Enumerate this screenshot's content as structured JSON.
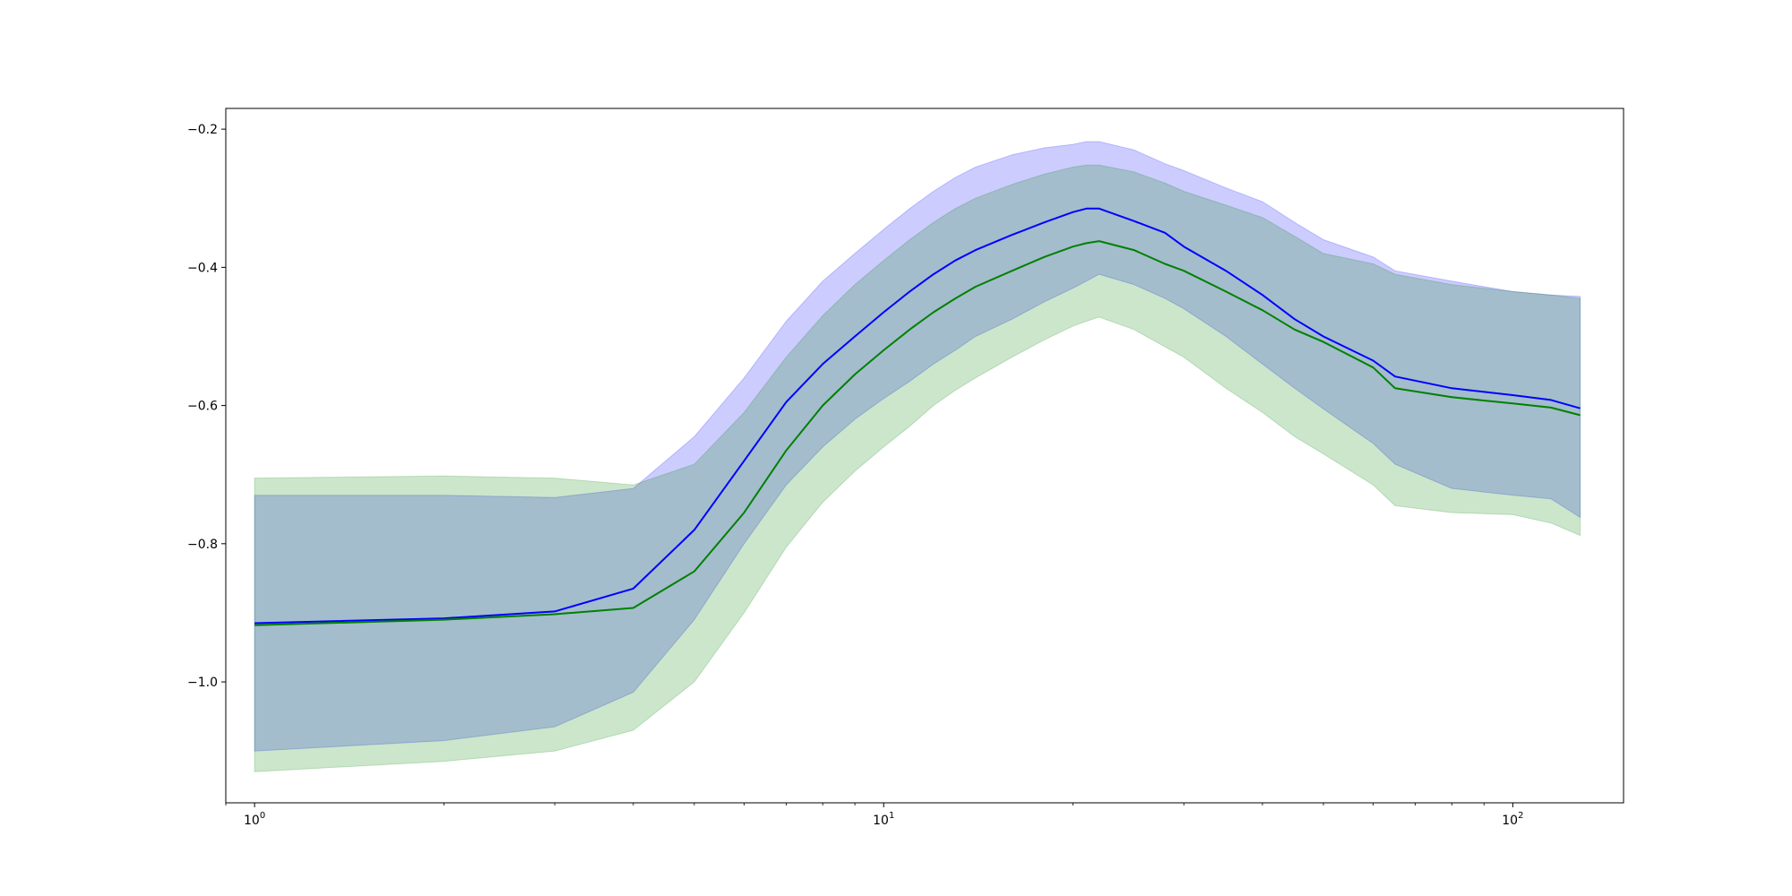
{
  "chart_data": {
    "type": "line",
    "title": "",
    "xlabel": "",
    "ylabel": "",
    "x_scale": "log",
    "xlim": [
      0.9,
      150
    ],
    "ylim": [
      -1.175,
      -0.17
    ],
    "grid": false,
    "legend": "none",
    "x_ticks": [
      {
        "value": 1,
        "base": "10",
        "exp": "0"
      },
      {
        "value": 10,
        "base": "10",
        "exp": "1"
      },
      {
        "value": 100,
        "base": "10",
        "exp": "2"
      }
    ],
    "y_ticks": [
      {
        "value": -0.2,
        "label": "−0.2"
      },
      {
        "value": -0.4,
        "label": "−0.4"
      },
      {
        "value": -0.6,
        "label": "−0.6"
      },
      {
        "value": -0.8,
        "label": "−0.8"
      },
      {
        "value": -1.0,
        "label": "−1.0"
      }
    ],
    "series": [
      {
        "color": "#0000ff",
        "band_color": "#0000ff",
        "band_opacity": 0.2,
        "points": [
          {
            "x": 1,
            "y": -0.915,
            "lo": -1.1,
            "hi": -0.73
          },
          {
            "x": 2,
            "y": -0.908,
            "lo": -1.085,
            "hi": -0.73
          },
          {
            "x": 3,
            "y": -0.898,
            "lo": -1.065,
            "hi": -0.733
          },
          {
            "x": 4,
            "y": -0.865,
            "lo": -1.015,
            "hi": -0.72
          },
          {
            "x": 5,
            "y": -0.78,
            "lo": -0.91,
            "hi": -0.645
          },
          {
            "x": 6,
            "y": -0.68,
            "lo": -0.8,
            "hi": -0.56
          },
          {
            "x": 7,
            "y": -0.595,
            "lo": -0.715,
            "hi": -0.478
          },
          {
            "x": 8,
            "y": -0.54,
            "lo": -0.66,
            "hi": -0.42
          },
          {
            "x": 9,
            "y": -0.5,
            "lo": -0.62,
            "hi": -0.38
          },
          {
            "x": 10,
            "y": -0.465,
            "lo": -0.59,
            "hi": -0.345
          },
          {
            "x": 11,
            "y": -0.435,
            "lo": -0.565,
            "hi": -0.315
          },
          {
            "x": 12,
            "y": -0.41,
            "lo": -0.54,
            "hi": -0.29
          },
          {
            "x": 13,
            "y": -0.39,
            "lo": -0.52,
            "hi": -0.27
          },
          {
            "x": 14,
            "y": -0.375,
            "lo": -0.5,
            "hi": -0.255
          },
          {
            "x": 16,
            "y": -0.353,
            "lo": -0.475,
            "hi": -0.237
          },
          {
            "x": 18,
            "y": -0.335,
            "lo": -0.45,
            "hi": -0.227
          },
          {
            "x": 20,
            "y": -0.32,
            "lo": -0.43,
            "hi": -0.222
          },
          {
            "x": 21,
            "y": -0.315,
            "lo": -0.42,
            "hi": -0.218
          },
          {
            "x": 22,
            "y": -0.315,
            "lo": -0.41,
            "hi": -0.218
          },
          {
            "x": 25,
            "y": -0.333,
            "lo": -0.425,
            "hi": -0.23
          },
          {
            "x": 28,
            "y": -0.35,
            "lo": -0.445,
            "hi": -0.25
          },
          {
            "x": 30,
            "y": -0.37,
            "lo": -0.46,
            "hi": -0.26
          },
          {
            "x": 35,
            "y": -0.405,
            "lo": -0.5,
            "hi": -0.285
          },
          {
            "x": 40,
            "y": -0.44,
            "lo": -0.54,
            "hi": -0.305
          },
          {
            "x": 45,
            "y": -0.475,
            "lo": -0.575,
            "hi": -0.335
          },
          {
            "x": 50,
            "y": -0.5,
            "lo": -0.605,
            "hi": -0.36
          },
          {
            "x": 60,
            "y": -0.535,
            "lo": -0.655,
            "hi": -0.385
          },
          {
            "x": 65,
            "y": -0.558,
            "lo": -0.685,
            "hi": -0.405
          },
          {
            "x": 80,
            "y": -0.575,
            "lo": -0.72,
            "hi": -0.42
          },
          {
            "x": 100,
            "y": -0.585,
            "lo": -0.73,
            "hi": -0.435
          },
          {
            "x": 115,
            "y": -0.592,
            "lo": -0.735,
            "hi": -0.44
          },
          {
            "x": 128,
            "y": -0.604,
            "lo": -0.762,
            "hi": -0.442
          }
        ]
      },
      {
        "color": "#008000",
        "band_color": "#008000",
        "band_opacity": 0.2,
        "points": [
          {
            "x": 1,
            "y": -0.918,
            "lo": -1.13,
            "hi": -0.705
          },
          {
            "x": 2,
            "y": -0.91,
            "lo": -1.115,
            "hi": -0.702
          },
          {
            "x": 3,
            "y": -0.902,
            "lo": -1.1,
            "hi": -0.705
          },
          {
            "x": 4,
            "y": -0.893,
            "lo": -1.07,
            "hi": -0.715
          },
          {
            "x": 5,
            "y": -0.84,
            "lo": -1.0,
            "hi": -0.685
          },
          {
            "x": 6,
            "y": -0.755,
            "lo": -0.9,
            "hi": -0.61
          },
          {
            "x": 7,
            "y": -0.665,
            "lo": -0.805,
            "hi": -0.53
          },
          {
            "x": 8,
            "y": -0.6,
            "lo": -0.74,
            "hi": -0.47
          },
          {
            "x": 9,
            "y": -0.555,
            "lo": -0.695,
            "hi": -0.425
          },
          {
            "x": 10,
            "y": -0.52,
            "lo": -0.66,
            "hi": -0.39
          },
          {
            "x": 11,
            "y": -0.49,
            "lo": -0.63,
            "hi": -0.36
          },
          {
            "x": 12,
            "y": -0.465,
            "lo": -0.6,
            "hi": -0.335
          },
          {
            "x": 13,
            "y": -0.445,
            "lo": -0.578,
            "hi": -0.315
          },
          {
            "x": 14,
            "y": -0.428,
            "lo": -0.56,
            "hi": -0.3
          },
          {
            "x": 16,
            "y": -0.405,
            "lo": -0.53,
            "hi": -0.28
          },
          {
            "x": 18,
            "y": -0.385,
            "lo": -0.505,
            "hi": -0.265
          },
          {
            "x": 20,
            "y": -0.37,
            "lo": -0.485,
            "hi": -0.255
          },
          {
            "x": 21,
            "y": -0.365,
            "lo": -0.478,
            "hi": -0.252
          },
          {
            "x": 22,
            "y": -0.362,
            "lo": -0.472,
            "hi": -0.252
          },
          {
            "x": 25,
            "y": -0.375,
            "lo": -0.49,
            "hi": -0.262
          },
          {
            "x": 28,
            "y": -0.395,
            "lo": -0.515,
            "hi": -0.278
          },
          {
            "x": 30,
            "y": -0.405,
            "lo": -0.53,
            "hi": -0.29
          },
          {
            "x": 35,
            "y": -0.435,
            "lo": -0.575,
            "hi": -0.31
          },
          {
            "x": 40,
            "y": -0.462,
            "lo": -0.61,
            "hi": -0.328
          },
          {
            "x": 45,
            "y": -0.49,
            "lo": -0.645,
            "hi": -0.355
          },
          {
            "x": 50,
            "y": -0.508,
            "lo": -0.67,
            "hi": -0.38
          },
          {
            "x": 60,
            "y": -0.545,
            "lo": -0.715,
            "hi": -0.395
          },
          {
            "x": 65,
            "y": -0.575,
            "lo": -0.745,
            "hi": -0.41
          },
          {
            "x": 80,
            "y": -0.588,
            "lo": -0.755,
            "hi": -0.425
          },
          {
            "x": 100,
            "y": -0.597,
            "lo": -0.758,
            "hi": -0.435
          },
          {
            "x": 115,
            "y": -0.603,
            "lo": -0.77,
            "hi": -0.44
          },
          {
            "x": 128,
            "y": -0.614,
            "lo": -0.788,
            "hi": -0.445
          }
        ]
      }
    ]
  }
}
